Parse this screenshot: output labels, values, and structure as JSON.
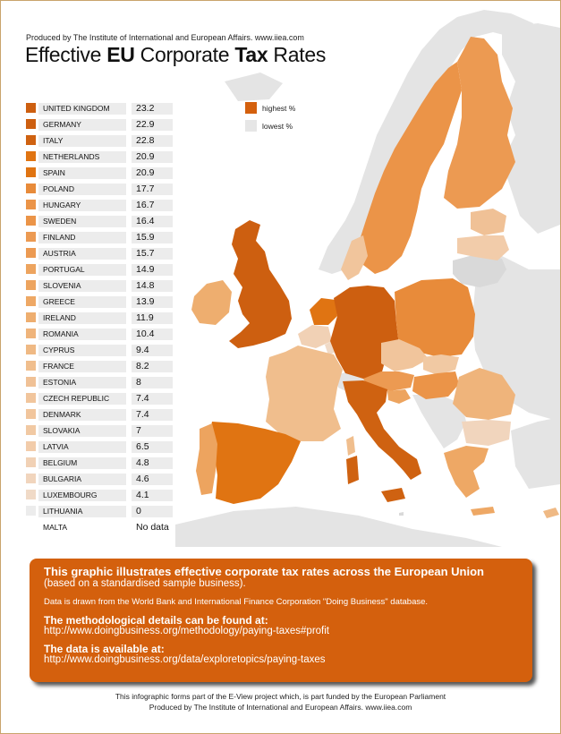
{
  "header": {
    "producer": "Produced by The Institute of International and European Affairs. www.iiea.com",
    "title_parts": [
      "Effective ",
      "EU",
      " Corporate ",
      "Tax",
      " Rates"
    ]
  },
  "legend": {
    "highest_label": "highest %",
    "lowest_label": "lowest %",
    "highest_color": "#d4600d",
    "lowest_color": "#e6e6e6"
  },
  "chart_data": {
    "type": "table",
    "rows": [
      {
        "country": "UNITED KINGDOM",
        "value": "23.2",
        "color": "#cd5f10"
      },
      {
        "country": "GERMANY",
        "value": "22.9",
        "color": "#cd5f10"
      },
      {
        "country": "ITALY",
        "value": "22.8",
        "color": "#cf6211"
      },
      {
        "country": "NETHERLANDS",
        "value": "20.9",
        "color": "#e07412"
      },
      {
        "country": "SPAIN",
        "value": "20.9",
        "color": "#e07412"
      },
      {
        "country": "POLAND",
        "value": "17.7",
        "color": "#e88b3a"
      },
      {
        "country": "HUNGARY",
        "value": "16.7",
        "color": "#eb9448"
      },
      {
        "country": "SWEDEN",
        "value": "16.4",
        "color": "#eb9448"
      },
      {
        "country": "FINLAND",
        "value": "15.9",
        "color": "#ec9a52"
      },
      {
        "country": "AUSTRIA",
        "value": "15.7",
        "color": "#ec9a52"
      },
      {
        "country": "PORTUGAL",
        "value": "14.9",
        "color": "#eda45f"
      },
      {
        "country": "SLOVENIA",
        "value": "14.8",
        "color": "#eda45f"
      },
      {
        "country": "GREECE",
        "value": "13.9",
        "color": "#eea865"
      },
      {
        "country": "IRELAND",
        "value": "11.9",
        "color": "#eeae6f"
      },
      {
        "country": "ROMANIA",
        "value": "10.4",
        "color": "#efb47b"
      },
      {
        "country": "CYPRUS",
        "value": "9.4",
        "color": "#efb984"
      },
      {
        "country": "FRANCE",
        "value": "8.2",
        "color": "#f0be8d"
      },
      {
        "country": "ESTONIA",
        "value": "8",
        "color": "#f0c196"
      },
      {
        "country": "CZECH REPUBLIC",
        "value": "7.4",
        "color": "#f1c59c"
      },
      {
        "country": "DENMARK",
        "value": "7.4",
        "color": "#f1c59c"
      },
      {
        "country": "SLOVAKIA",
        "value": "7",
        "color": "#f1c9a3"
      },
      {
        "country": "LATVIA",
        "value": "6.5",
        "color": "#f2ccaa"
      },
      {
        "country": "BELGIUM",
        "value": "4.8",
        "color": "#f1d1b5"
      },
      {
        "country": "BULGARIA",
        "value": "4.6",
        "color": "#f1d5bd"
      },
      {
        "country": "LUXEMBOURG",
        "value": "4.1",
        "color": "#f0dac7"
      },
      {
        "country": "LITHUANIA",
        "value": "0",
        "color": "#ececec"
      },
      {
        "country": "MALTA",
        "value": "No data",
        "color": "#ffffff"
      }
    ]
  },
  "info": {
    "headline": "This graphic illustrates effective corporate tax rates across the European Union",
    "subline": "(based on a standardised sample business).",
    "source_line": "Data is drawn from the World Bank and International Finance Corporation \"Doing Business\" database.",
    "method_heading": "The methodological details can be found at:",
    "method_url": "http://www.doingbusiness.org/methodology/paying-taxes#profit",
    "data_heading": "The data is available at:",
    "data_url": "http://www.doingbusiness.org/data/exploretopics/paying-taxes"
  },
  "footer": {
    "line1": "This infographic forms part of the E-View project which, is part funded by the European Parliament",
    "line2": "Produced by The Institute of International and European Affairs. www.iiea.com"
  }
}
